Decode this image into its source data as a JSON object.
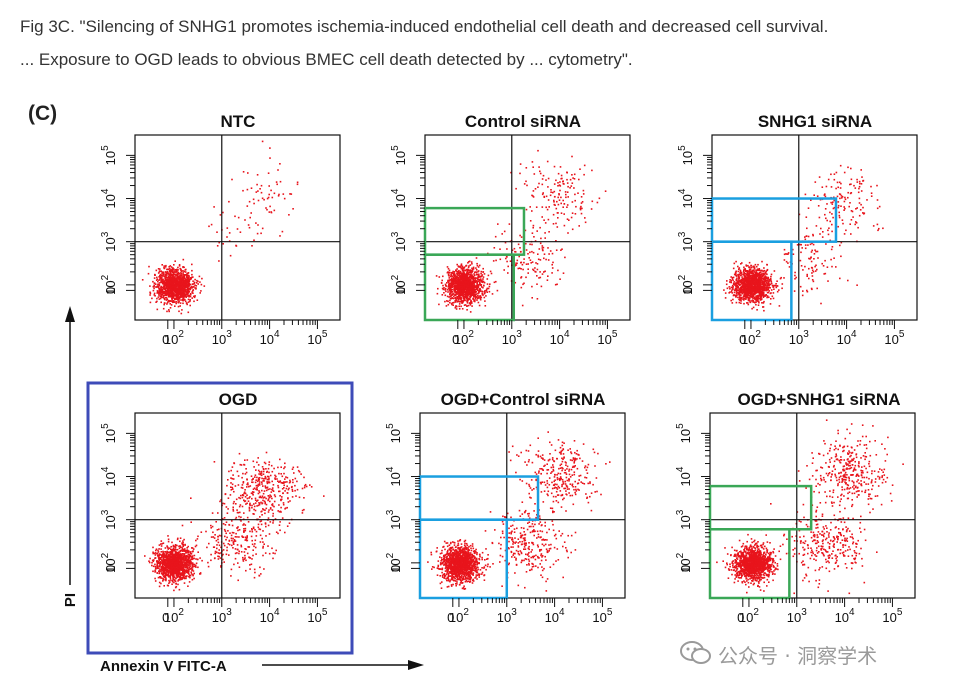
{
  "caption": {
    "line1": "Fig 3C. \"Silencing of SNHG1 promotes ischemia-induced endothelial cell death and decreased cell survival.",
    "line2": "... Exposure to OGD leads to obvious BMEC cell death detected by ... cytometry\"."
  },
  "panel_letter": "(C)",
  "watermark": "公众号 · 洞察学术",
  "colors": {
    "dots": "#e8141c",
    "highlight_blue": "#3e4bb8",
    "box_green": "#3aa757",
    "box_cyan": "#1a9fe0"
  },
  "chart_data": [
    {
      "type": "scatter",
      "title": "NTC",
      "xlabel": "Annexin V FITC-A",
      "ylabel": "PI",
      "x_ticks": [
        "0",
        "10",
        "10",
        "10",
        "10"
      ],
      "x_tick_exps": [
        "",
        "2",
        "3",
        "4",
        "5"
      ],
      "y_ticks": [
        "0",
        "10",
        "10",
        "10",
        "10"
      ],
      "y_tick_exps": [
        "",
        "2",
        "3",
        "4",
        "5"
      ],
      "quadrant_gate": {
        "x": 1000,
        "y": 1000
      },
      "populations": [
        {
          "cx": 100,
          "cy": 100,
          "n": 1300
        },
        {
          "cx": 8000,
          "cy": 12000,
          "n": 60
        },
        {
          "cx": 1500,
          "cy": 2000,
          "n": 30
        }
      ],
      "boxes": [],
      "highlighted": false
    },
    {
      "type": "scatter",
      "title": "Control siRNA",
      "quadrant_gate": {
        "x": 1000,
        "y": 1000
      },
      "populations": [
        {
          "cx": 100,
          "cy": 100,
          "n": 1300
        },
        {
          "cx": 8000,
          "cy": 12000,
          "n": 160
        },
        {
          "cx": 2000,
          "cy": 400,
          "n": 150
        }
      ],
      "boxes": [
        {
          "color": "green",
          "x": [
            0,
            1800
          ],
          "y": [
            500,
            6000
          ]
        },
        {
          "color": "green",
          "x": [
            0,
            1100
          ],
          "y": [
            0,
            500
          ]
        }
      ],
      "highlighted": false
    },
    {
      "type": "scatter",
      "title": "SNHG1 siRNA",
      "quadrant_gate": {
        "x": 1000,
        "y": 1000
      },
      "populations": [
        {
          "cx": 100,
          "cy": 100,
          "n": 1300
        },
        {
          "cx": 7000,
          "cy": 10000,
          "n": 140
        },
        {
          "cx": 1800,
          "cy": 400,
          "n": 120
        }
      ],
      "boxes": [
        {
          "color": "cyan",
          "x": [
            0,
            6000
          ],
          "y": [
            1000,
            10000
          ]
        },
        {
          "color": "cyan",
          "x": [
            0,
            700
          ],
          "y": [
            0,
            1000
          ]
        }
      ],
      "highlighted": false
    },
    {
      "type": "scatter",
      "title": "OGD",
      "quadrant_gate": {
        "x": 1000,
        "y": 1000
      },
      "populations": [
        {
          "cx": 100,
          "cy": 100,
          "n": 1300
        },
        {
          "cx": 7000,
          "cy": 5000,
          "n": 400
        },
        {
          "cx": 2000,
          "cy": 300,
          "n": 250
        }
      ],
      "boxes": [],
      "highlighted": true
    },
    {
      "type": "scatter",
      "title": "OGD+Control siRNA",
      "quadrant_gate": {
        "x": 1000,
        "y": 1000
      },
      "populations": [
        {
          "cx": 100,
          "cy": 100,
          "n": 1300
        },
        {
          "cx": 12000,
          "cy": 12000,
          "n": 300
        },
        {
          "cx": 3000,
          "cy": 300,
          "n": 280
        }
      ],
      "boxes": [
        {
          "color": "cyan",
          "x": [
            0,
            4500
          ],
          "y": [
            1000,
            10000
          ]
        },
        {
          "color": "cyan",
          "x": [
            0,
            1000
          ],
          "y": [
            0,
            1000
          ]
        }
      ],
      "highlighted": false
    },
    {
      "type": "scatter",
      "title": "OGD+SNHG1 siRNA",
      "quadrant_gate": {
        "x": 1000,
        "y": 1000
      },
      "populations": [
        {
          "cx": 120,
          "cy": 100,
          "n": 1300
        },
        {
          "cx": 12000,
          "cy": 14000,
          "n": 350
        },
        {
          "cx": 3500,
          "cy": 300,
          "n": 300
        }
      ],
      "boxes": [
        {
          "color": "green",
          "x": [
            0,
            2000
          ],
          "y": [
            600,
            6000
          ]
        },
        {
          "color": "green",
          "x": [
            0,
            700
          ],
          "y": [
            0,
            600
          ]
        }
      ],
      "highlighted": false
    }
  ],
  "axes_overall": {
    "x_label": "Annexin V FITC-A",
    "y_label": "PI"
  }
}
